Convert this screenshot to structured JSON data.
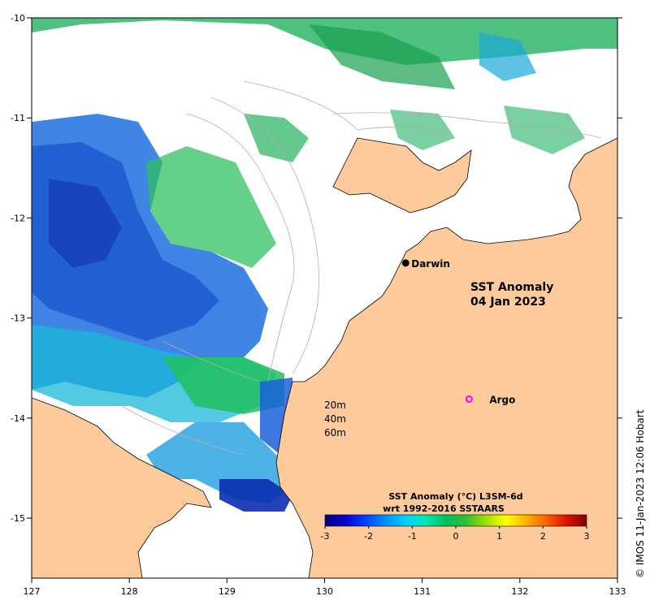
{
  "map": {
    "title_line1": "SST Anomaly",
    "title_line2": "04 Jan 2023",
    "credit": "© IMOS 11-Jan-2023 12:06 Hobart",
    "x_ticks": [
      "127",
      "128",
      "129",
      "130",
      "131",
      "132",
      "133"
    ],
    "y_ticks": [
      "-10",
      "-11",
      "-12",
      "-13",
      "-14",
      "-15"
    ],
    "x_range": [
      127,
      133
    ],
    "y_range": [
      -10,
      -15.6
    ],
    "depth_labels": [
      "20m",
      "40m",
      "60m"
    ],
    "places": [
      {
        "name": "Darwin",
        "lon": 130.83,
        "lat": -12.45,
        "marker": "filled-circle"
      },
      {
        "name": "Argo",
        "lon": 131.48,
        "lat": -13.81,
        "marker": "open-circle"
      }
    ],
    "colors": {
      "land": "#fdcb9b",
      "ocean": "#ffffff",
      "contour": "#b0b0b0",
      "argo": "#ff00ff"
    }
  },
  "colorbar": {
    "title_line1": "SST Anomaly (°C) L3SM-6d",
    "title_line2": "wrt 1992-2016 SSTAARS",
    "tick_labels": [
      "-3",
      "-2",
      "-1",
      "0",
      "1",
      "2",
      "3"
    ],
    "range": [
      -3,
      3
    ],
    "colors": [
      "#00007f",
      "#0000d0",
      "#0040ff",
      "#0090ff",
      "#00d0ff",
      "#00e8b0",
      "#00c060",
      "#30c030",
      "#a0e000",
      "#ffff00",
      "#ffb000",
      "#ff6000",
      "#e01000",
      "#800000"
    ]
  }
}
